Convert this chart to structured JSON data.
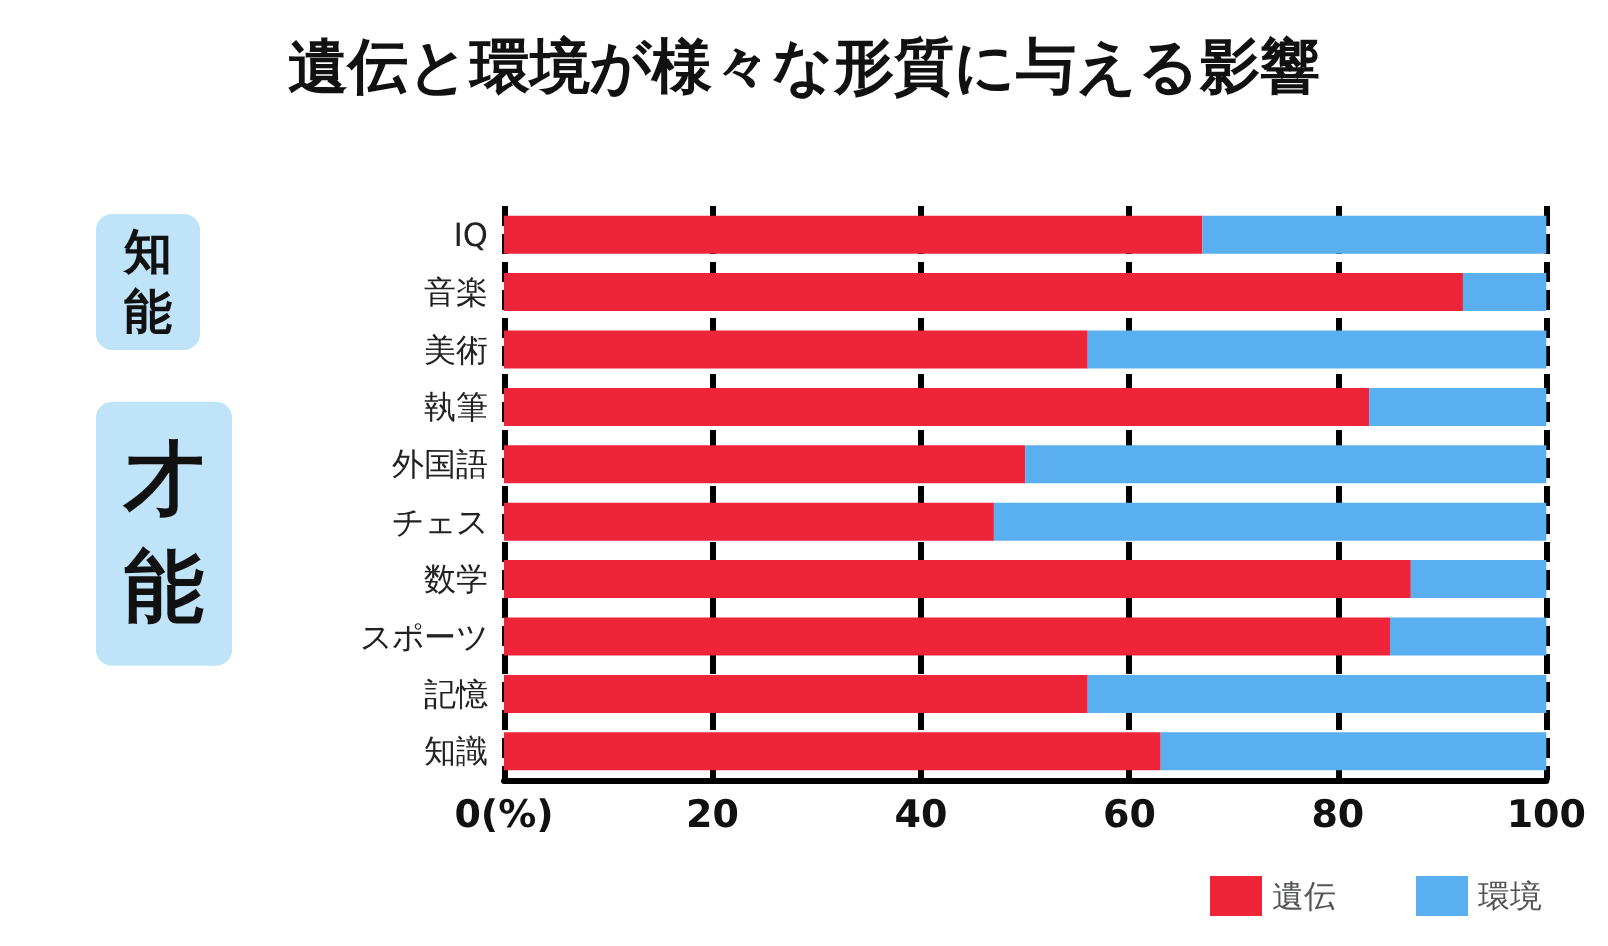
{
  "chart_data": {
    "type": "bar",
    "orientation": "horizontal",
    "stacked": true,
    "title": "遺伝と環境が様々な形質に与える影響",
    "categories": [
      "IQ",
      "音楽",
      "美術",
      "執筆",
      "外国語",
      "チェス",
      "数学",
      "スポーツ",
      "記憶",
      "知識"
    ],
    "series": [
      {
        "name": "遺伝",
        "color": "#ee2439",
        "values": [
          67,
          92,
          56,
          83,
          50,
          47,
          87,
          85,
          56,
          63
        ]
      },
      {
        "name": "環境",
        "color": "#5aaff0",
        "values": [
          33,
          8,
          44,
          17,
          50,
          53,
          13,
          15,
          44,
          37
        ]
      }
    ],
    "xlim": [
      0,
      100
    ],
    "xticks": [
      {
        "value": 0,
        "label": "0(%)"
      },
      20,
      40,
      60,
      80,
      100
    ],
    "grid": "x",
    "legend": "bottom right",
    "annotations": [
      "知能",
      "才能"
    ]
  }
}
